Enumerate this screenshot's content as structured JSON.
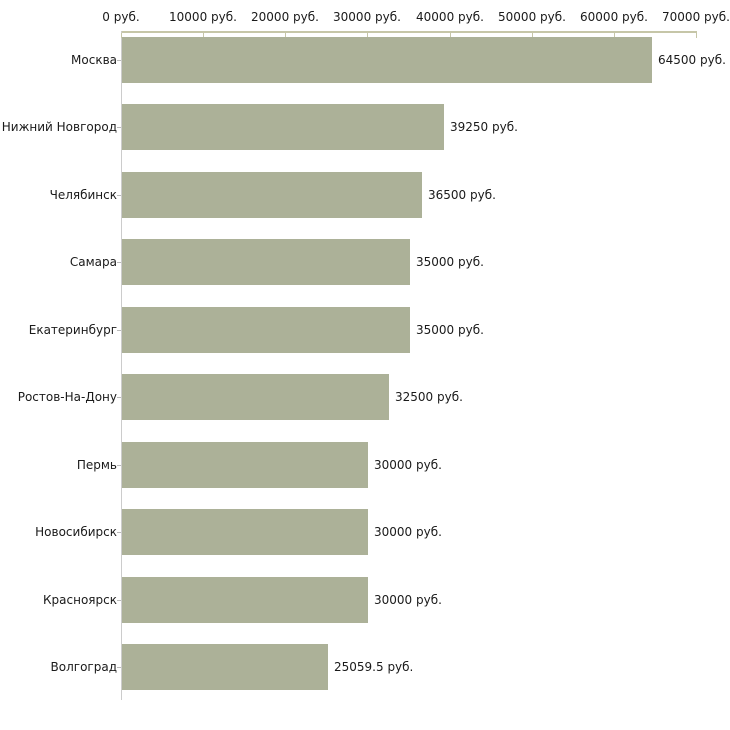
{
  "chart_data": {
    "type": "bar",
    "orientation": "horizontal",
    "title": "",
    "categories": [
      "Москва",
      "Нижний Новгород",
      "Челябинск",
      "Самара",
      "Екатеринбург",
      "Ростов-На-Дону",
      "Пермь",
      "Новосибирск",
      "Красноярск",
      "Волгоград"
    ],
    "values": [
      64500,
      39250,
      36500,
      35000,
      35000,
      32500,
      30000,
      30000,
      30000,
      25059.5
    ],
    "value_labels": [
      "64500 руб.",
      "39250 руб.",
      "36500 руб.",
      "35000 руб.",
      "35000 руб.",
      "32500 руб.",
      "30000 руб.",
      "30000 руб.",
      "30000 руб.",
      "25059.5 руб."
    ],
    "x_axis": {
      "min": 0,
      "max": 70000,
      "tick_interval": 10000,
      "tick_labels": [
        "0 руб.",
        "10000 руб.",
        "20000 руб.",
        "30000 руб.",
        "40000 руб.",
        "50000 руб.",
        "60000 руб.",
        "70000 руб."
      ],
      "position": "top"
    },
    "ylabel": "",
    "xlabel": "",
    "legend": false,
    "grid": false,
    "colors": {
      "bar": "#acb198",
      "axis_line": "#c6c6a8",
      "category_axis_line": "#cccccc",
      "category_tick": "#bbbbbb",
      "text": "#1a1a1a",
      "background": "#ffffff"
    }
  }
}
